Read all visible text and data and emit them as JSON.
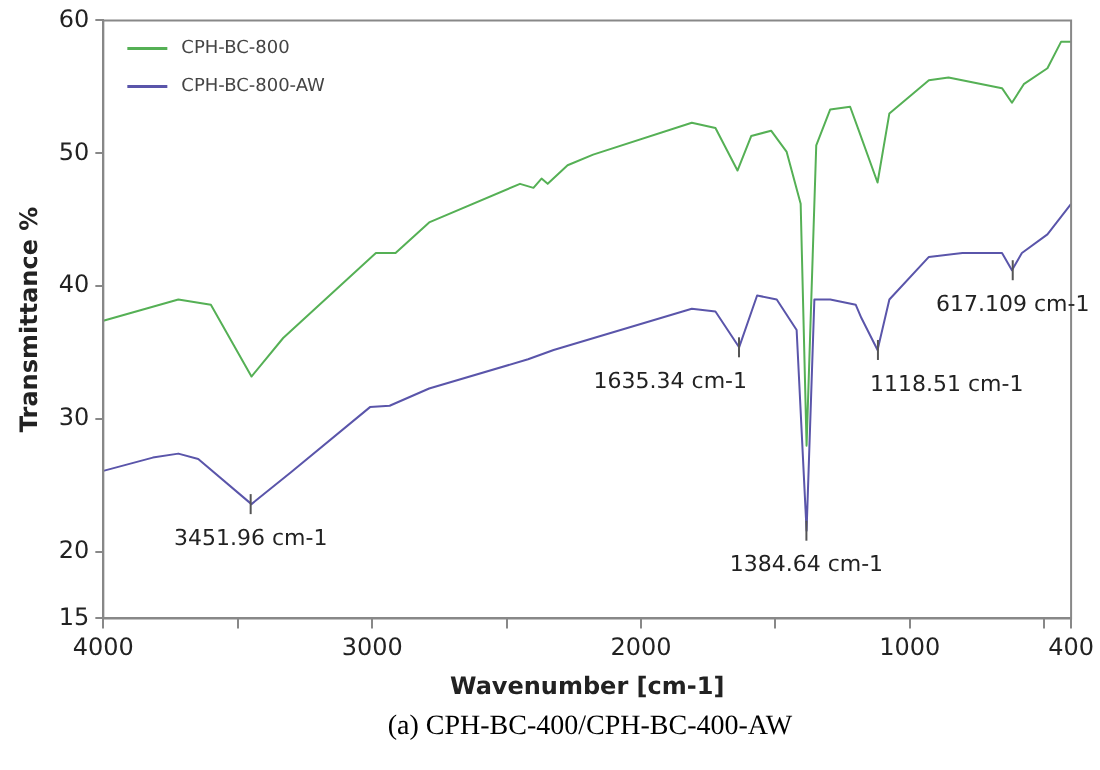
{
  "chart_data": {
    "type": "line",
    "xlabel": "Wavenumber [cm-1]",
    "ylabel": "Transmittance %",
    "xlim": [
      4000,
      400
    ],
    "xticks": [
      4000,
      {
        "value": 3500,
        "label": null
      },
      3000,
      {
        "value": 2500,
        "label": null
      },
      2000,
      {
        "value": 1500,
        "label": null
      },
      1000,
      {
        "value": 500,
        "label": null
      },
      400
    ],
    "ylim": [
      15,
      60
    ],
    "yticks": [
      15,
      20,
      30,
      40,
      50,
      60
    ],
    "grid": false,
    "legend": "top left",
    "marker": "none",
    "line_style": "solid",
    "series": [
      {
        "name": "CPH-BC-800",
        "color": "#55b055",
        "x": [
          4000,
          3721,
          3600,
          3449,
          3331,
          2986,
          2913,
          2788,
          2450,
          2400,
          2370,
          2347,
          2273,
          2178,
          1811,
          1723,
          1641,
          1590,
          1516,
          1458,
          1406,
          1384,
          1348,
          1296,
          1222,
          1193,
          1120,
          1076,
          929,
          856,
          657,
          620,
          576,
          488,
          437,
          400
        ],
        "values": [
          37.4,
          39.0,
          38.6,
          33.2,
          36.1,
          42.5,
          42.5,
          44.8,
          47.7,
          47.4,
          48.1,
          47.7,
          49.1,
          49.9,
          52.3,
          51.9,
          48.7,
          51.3,
          51.7,
          50.1,
          46.2,
          28.0,
          50.6,
          53.3,
          53.5,
          51.9,
          47.8,
          53.0,
          55.5,
          55.7,
          54.9,
          53.8,
          55.2,
          56.4,
          58.4,
          58.4
        ]
      },
      {
        "name": "CPH-BC-800-AW",
        "color": "#5a55aa",
        "x": [
          4000,
          3816,
          3721,
          3647,
          3449,
          3302,
          3008,
          2935,
          2788,
          2420,
          2325,
          1811,
          1723,
          1635,
          1568,
          1495,
          1421,
          1384,
          1355,
          1296,
          1201,
          1180,
          1120,
          1076,
          929,
          804,
          657,
          620,
          583,
          488,
          400
        ],
        "values": [
          26.1,
          27.1,
          27.4,
          27.0,
          23.6,
          26.0,
          30.9,
          31.0,
          32.3,
          34.5,
          35.2,
          38.3,
          38.1,
          35.4,
          39.3,
          39.0,
          36.7,
          21.6,
          39.0,
          39.0,
          38.6,
          37.6,
          35.2,
          39.0,
          42.2,
          42.5,
          42.5,
          41.2,
          42.5,
          43.9,
          46.2
        ]
      }
    ],
    "annotations": [
      {
        "text": "3451.96 cm-1",
        "x": 3451.96,
        "y": 23.6
      },
      {
        "text": "1635.34 cm-1",
        "x": 1635.34,
        "y": 35.4
      },
      {
        "text": "1118.51 cm-1",
        "x": 1118.51,
        "y": 35.2
      },
      {
        "text": "1384.64 cm-1",
        "x": 1384.64,
        "y": 21.6
      },
      {
        "text": "617.109 cm-1",
        "x": 617.109,
        "y": 41.2
      },
      "(a) CPH-BC-400/CPH-BC-400-AW"
    ]
  }
}
